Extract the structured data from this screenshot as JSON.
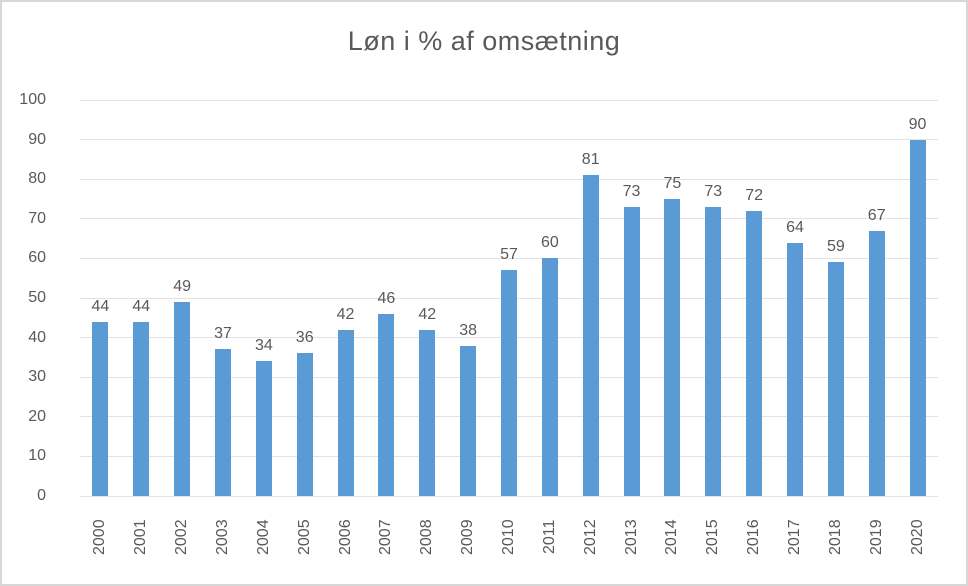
{
  "chart_data": {
    "type": "bar",
    "title": "Løn i % af omsætning",
    "categories": [
      "2000",
      "2001",
      "2002",
      "2003",
      "2004",
      "2005",
      "2006",
      "2007",
      "2008",
      "2009",
      "2010",
      "2011",
      "2012",
      "2013",
      "2014",
      "2015",
      "2016",
      "2017",
      "2018",
      "2019",
      "2020"
    ],
    "values": [
      44,
      44,
      49,
      37,
      34,
      36,
      42,
      46,
      42,
      38,
      57,
      60,
      81,
      73,
      75,
      73,
      72,
      64,
      59,
      67,
      90
    ],
    "xlabel": "",
    "ylabel": "",
    "ylim": [
      0,
      100
    ],
    "yticks": [
      0,
      10,
      20,
      30,
      40,
      50,
      60,
      70,
      80,
      90,
      100
    ],
    "grid": true,
    "legend": false,
    "data_labels_shown": true,
    "colors": {
      "bar": "#5b9bd5",
      "gridline": "#e2e2e2",
      "title_text": "#595959",
      "axis_text": "#595959",
      "data_label_text": "#595959",
      "frame_border": "#d7d7d7",
      "background": "#ffffff"
    }
  }
}
